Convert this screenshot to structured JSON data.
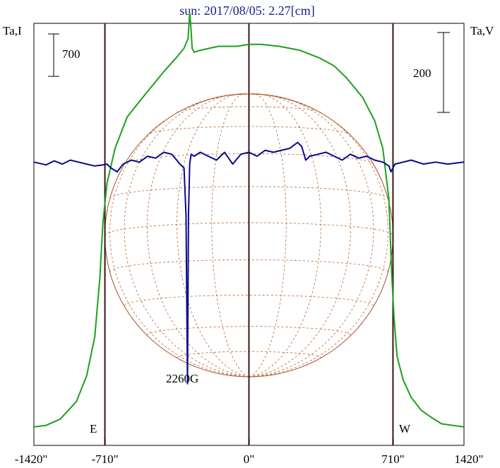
{
  "chart_data": {
    "type": "line",
    "title": "sun: 2017/08/05: 2.27[cm]",
    "left_axis_label": "Ta,I",
    "right_axis_label": "Ta,V",
    "x_ticks": [
      {
        "value": -1420,
        "label": "-1420\""
      },
      {
        "value": -710,
        "label": "-710\""
      },
      {
        "value": 0,
        "label": "0\""
      },
      {
        "value": 710,
        "label": "710\""
      },
      {
        "value": 1420,
        "label": "1420\""
      }
    ],
    "xlim": [
      -1060,
      1060
    ],
    "ylim": [
      0,
      1000
    ],
    "limb_lines": [
      -710,
      0,
      710
    ],
    "limb_labels": {
      "east": "E",
      "west": "W"
    },
    "scale_bars": {
      "intensity": {
        "label": "700",
        "value": 700
      },
      "polarization": {
        "label": "200",
        "value": 200
      }
    },
    "disk_radius": 710,
    "source_label": {
      "text": "2260G",
      "x": -305
    },
    "series": [
      {
        "key": "I",
        "color": "#1ea01e",
        "x": [
          -1060,
          -1000,
          -930,
          -850,
          -800,
          -760,
          -735,
          -720,
          -700,
          -660,
          -600,
          -500,
          -420,
          -360,
          -320,
          -300,
          -292,
          -286,
          -280,
          -270,
          -240,
          -150,
          -60,
          0,
          60,
          150,
          250,
          350,
          420,
          480,
          560,
          620,
          660,
          690,
          703,
          715,
          730,
          760,
          800,
          850,
          900,
          950,
          1060
        ],
        "y": [
          20,
          24,
          40,
          85,
          150,
          250,
          400,
          540,
          640,
          730,
          810,
          875,
          925,
          960,
          985,
          1010,
          1075,
          1040,
          985,
          975,
          980,
          990,
          990,
          995,
          995,
          990,
          980,
          960,
          940,
          910,
          860,
          800,
          730,
          600,
          420,
          300,
          200,
          140,
          95,
          62,
          44,
          28,
          20
        ]
      },
      {
        "key": "V",
        "color": "#0a0a8c",
        "x": [
          -1060,
          -1000,
          -960,
          -920,
          -880,
          -840,
          -800,
          -760,
          -720,
          -700,
          -680,
          -650,
          -620,
          -580,
          -540,
          -500,
          -460,
          -420,
          -380,
          -340,
          -320,
          -310,
          -303,
          -298,
          -292,
          -285,
          -270,
          -240,
          -200,
          -160,
          -120,
          -80,
          -40,
          0,
          40,
          80,
          120,
          160,
          200,
          240,
          260,
          280,
          300,
          340,
          380,
          420,
          460,
          500,
          540,
          580,
          620,
          660,
          690,
          700,
          720,
          760,
          800,
          860,
          920,
          980,
          1060
        ],
        "y": [
          695,
          688,
          698,
          690,
          700,
          695,
          690,
          685,
          688,
          690,
          680,
          670,
          690,
          700,
          695,
          710,
          705,
          720,
          715,
          690,
          680,
          560,
          130,
          560,
          690,
          715,
          710,
          720,
          710,
          700,
          720,
          690,
          715,
          720,
          710,
          725,
          720,
          725,
          730,
          745,
          735,
          700,
          710,
          715,
          720,
          710,
          700,
          715,
          705,
          710,
          700,
          695,
          685,
          670,
          690,
          695,
          700,
          690,
          695,
          690,
          695
        ]
      }
    ]
  }
}
